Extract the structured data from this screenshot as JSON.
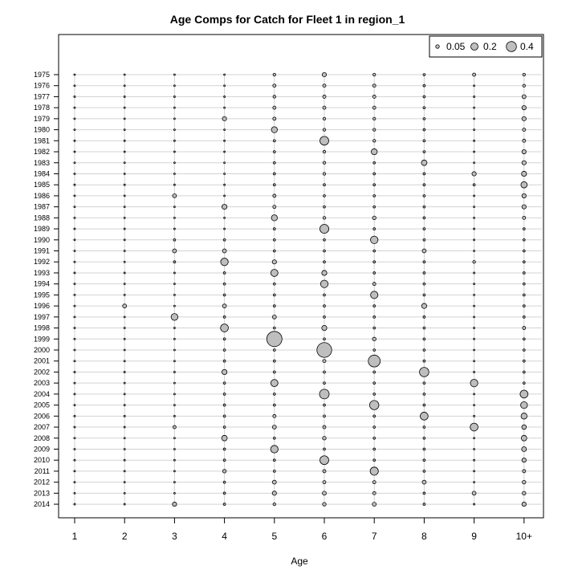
{
  "chart_data": {
    "type": "scatter",
    "subtype": "bubble",
    "title": "Age Comps for Catch for Fleet 1 in region_1",
    "xlabel": "Age",
    "ylabel": "",
    "x_categories": [
      "1",
      "2",
      "3",
      "4",
      "5",
      "6",
      "7",
      "8",
      "9",
      "10+"
    ],
    "y_categories": [
      "1975",
      "1976",
      "1977",
      "1978",
      "1979",
      "1980",
      "1981",
      "1982",
      "1983",
      "1984",
      "1985",
      "1986",
      "1987",
      "1988",
      "1989",
      "1990",
      "1991",
      "1992",
      "1993",
      "1994",
      "1995",
      "1996",
      "1997",
      "1998",
      "1999",
      "2000",
      "2001",
      "2002",
      "2003",
      "2004",
      "2005",
      "2006",
      "2007",
      "2008",
      "2009",
      "2010",
      "2011",
      "2012",
      "2013",
      "2014"
    ],
    "y_order": "top-to-bottom",
    "grid": true,
    "legend_position": "top-right",
    "legend": [
      {
        "label": "0.05",
        "value": 0.05
      },
      {
        "label": "0.2",
        "value": 0.2
      },
      {
        "label": "0.4",
        "value": 0.4
      }
    ],
    "bubble_fill": "#bebebe",
    "bubble_stroke": "#000000",
    "grid_color": "#d3d3d3",
    "values": [
      [
        0.01,
        0.01,
        0.01,
        0.01,
        0.03,
        0.07,
        0.03,
        0.02,
        0.04,
        0.03
      ],
      [
        0.01,
        0.01,
        0.01,
        0.01,
        0.04,
        0.04,
        0.04,
        0.02,
        0.01,
        0.03
      ],
      [
        0.01,
        0.01,
        0.01,
        0.01,
        0.03,
        0.04,
        0.04,
        0.02,
        0.01,
        0.06
      ],
      [
        0.01,
        0.01,
        0.01,
        0.01,
        0.04,
        0.04,
        0.04,
        0.02,
        0.01,
        0.07
      ],
      [
        0.01,
        0.01,
        0.01,
        0.07,
        0.04,
        0.03,
        0.03,
        0.02,
        0.01,
        0.07
      ],
      [
        0.01,
        0.01,
        0.01,
        0.01,
        0.14,
        0.03,
        0.03,
        0.02,
        0.01,
        0.04
      ],
      [
        0.01,
        0.01,
        0.01,
        0.01,
        0.02,
        0.3,
        0.03,
        0.02,
        0.01,
        0.04
      ],
      [
        0.01,
        0.01,
        0.01,
        0.01,
        0.02,
        0.03,
        0.14,
        0.02,
        0.01,
        0.07
      ],
      [
        0.01,
        0.01,
        0.01,
        0.01,
        0.02,
        0.03,
        0.02,
        0.12,
        0.01,
        0.07
      ],
      [
        0.01,
        0.01,
        0.01,
        0.01,
        0.02,
        0.03,
        0.02,
        0.02,
        0.07,
        0.1
      ],
      [
        0.01,
        0.01,
        0.01,
        0.01,
        0.02,
        0.02,
        0.02,
        0.02,
        0.02,
        0.15
      ],
      [
        0.01,
        0.01,
        0.06,
        0.01,
        0.04,
        0.02,
        0.02,
        0.02,
        0.01,
        0.07
      ],
      [
        0.01,
        0.01,
        0.01,
        0.1,
        0.04,
        0.02,
        0.02,
        0.02,
        0.01,
        0.07
      ],
      [
        0.01,
        0.01,
        0.01,
        0.01,
        0.14,
        0.03,
        0.05,
        0.02,
        0.01,
        0.04
      ],
      [
        0.01,
        0.01,
        0.01,
        0.01,
        0.02,
        0.31,
        0.02,
        0.02,
        0.01,
        0.02
      ],
      [
        0.01,
        0.01,
        0.02,
        0.02,
        0.02,
        0.02,
        0.22,
        0.02,
        0.01,
        0.02
      ],
      [
        0.01,
        0.01,
        0.06,
        0.06,
        0.02,
        0.02,
        0.02,
        0.06,
        0.01,
        0.02
      ],
      [
        0.01,
        0.01,
        0.02,
        0.22,
        0.07,
        0.02,
        0.02,
        0.02,
        0.03,
        0.02
      ],
      [
        0.01,
        0.01,
        0.01,
        0.02,
        0.2,
        0.1,
        0.02,
        0.02,
        0.01,
        0.02
      ],
      [
        0.01,
        0.01,
        0.01,
        0.02,
        0.02,
        0.22,
        0.04,
        0.02,
        0.01,
        0.02
      ],
      [
        0.01,
        0.01,
        0.01,
        0.02,
        0.02,
        0.02,
        0.21,
        0.02,
        0.01,
        0.02
      ],
      [
        0.01,
        0.06,
        0.01,
        0.06,
        0.02,
        0.02,
        0.02,
        0.1,
        0.01,
        0.02
      ],
      [
        0.01,
        0.01,
        0.18,
        0.02,
        0.06,
        0.02,
        0.02,
        0.02,
        0.01,
        0.02
      ],
      [
        0.01,
        0.01,
        0.01,
        0.24,
        0.02,
        0.1,
        0.02,
        0.02,
        0.01,
        0.04
      ],
      [
        0.01,
        0.01,
        0.01,
        0.02,
        0.9,
        0.02,
        0.05,
        0.02,
        0.01,
        0.02
      ],
      [
        0.01,
        0.01,
        0.01,
        0.02,
        0.02,
        0.85,
        0.02,
        0.02,
        0.01,
        0.02
      ],
      [
        0.01,
        0.01,
        0.01,
        0.02,
        0.02,
        0.04,
        0.55,
        0.02,
        0.01,
        0.02
      ],
      [
        0.01,
        0.01,
        0.01,
        0.1,
        0.02,
        0.02,
        0.02,
        0.34,
        0.01,
        0.02
      ],
      [
        0.01,
        0.01,
        0.01,
        0.02,
        0.2,
        0.02,
        0.02,
        0.02,
        0.22,
        0.02
      ],
      [
        0.01,
        0.01,
        0.01,
        0.02,
        0.02,
        0.36,
        0.02,
        0.02,
        0.01,
        0.24
      ],
      [
        0.01,
        0.01,
        0.01,
        0.02,
        0.02,
        0.02,
        0.33,
        0.02,
        0.01,
        0.18
      ],
      [
        0.01,
        0.01,
        0.01,
        0.02,
        0.04,
        0.02,
        0.02,
        0.24,
        0.01,
        0.14
      ],
      [
        0.01,
        0.01,
        0.04,
        0.02,
        0.06,
        0.04,
        0.02,
        0.02,
        0.24,
        0.08
      ],
      [
        0.01,
        0.01,
        0.01,
        0.12,
        0.02,
        0.05,
        0.02,
        0.02,
        0.01,
        0.12
      ],
      [
        0.01,
        0.01,
        0.01,
        0.02,
        0.22,
        0.02,
        0.02,
        0.02,
        0.01,
        0.09
      ],
      [
        0.01,
        0.01,
        0.01,
        0.02,
        0.02,
        0.3,
        0.02,
        0.02,
        0.01,
        0.07
      ],
      [
        0.01,
        0.01,
        0.01,
        0.05,
        0.02,
        0.04,
        0.26,
        0.02,
        0.01,
        0.04
      ],
      [
        0.01,
        0.01,
        0.01,
        0.02,
        0.06,
        0.04,
        0.04,
        0.06,
        0.01,
        0.05
      ],
      [
        0.01,
        0.01,
        0.01,
        0.02,
        0.07,
        0.06,
        0.04,
        0.02,
        0.06,
        0.05
      ],
      [
        0.01,
        0.01,
        0.07,
        0.02,
        0.03,
        0.05,
        0.06,
        0.02,
        0.01,
        0.07
      ]
    ]
  }
}
